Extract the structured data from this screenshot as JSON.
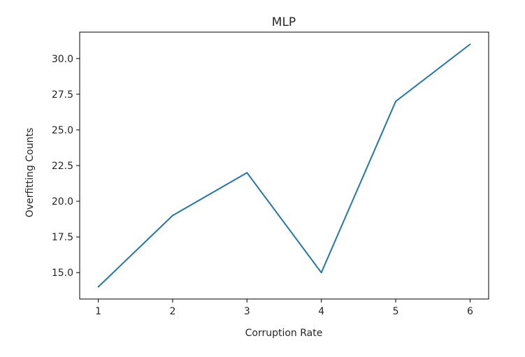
{
  "chart_data": {
    "type": "line",
    "title": "MLP",
    "xlabel": "Corruption Rate",
    "ylabel": "Overfitting Counts",
    "x": [
      1,
      2,
      3,
      4,
      5,
      6
    ],
    "series": [
      {
        "values": [
          14,
          19,
          22,
          15,
          27,
          31
        ]
      }
    ],
    "xticks": [
      "1",
      "2",
      "3",
      "4",
      "5",
      "6"
    ],
    "yticks": [
      15.0,
      17.5,
      20.0,
      22.5,
      25.0,
      27.5,
      30.0
    ],
    "ytick_labels": [
      "15.0",
      "17.5",
      "20.0",
      "22.5",
      "25.0",
      "27.5",
      "30.0"
    ],
    "xlim": [
      0.75,
      6.25
    ],
    "ylim": [
      13.15,
      31.85
    ],
    "grid": false,
    "line_color": "#1f77b4"
  }
}
